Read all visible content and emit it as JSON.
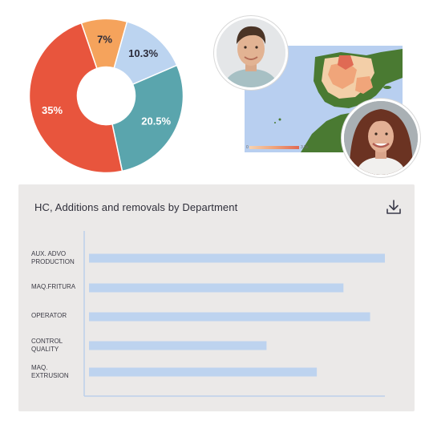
{
  "donut": {
    "chart_data": {
      "type": "pie",
      "slices": [
        {
          "label": "7%",
          "value": 7,
          "color": "#f5a35c"
        },
        {
          "label": "10.3%",
          "value": 10.3,
          "color": "#bcd4f0"
        },
        {
          "label": "20.5%",
          "value": 20.5,
          "color": "#5aa5ad"
        },
        {
          "label": "35%",
          "value": 35,
          "color": "#e8553d"
        }
      ]
    }
  },
  "map": {
    "legend_min": "0",
    "legend_max": "3.5k",
    "colors": {
      "sea": "#b8cff0",
      "land": "#4a7a32",
      "low": "#f3cfa8",
      "mid": "#f0a57a",
      "high": "#e06a54"
    }
  },
  "card": {
    "title": "HC, Additions and removals by Department",
    "download_icon": "download-icon",
    "chart_data": {
      "type": "bar",
      "orientation": "horizontal",
      "categories": [
        [
          "AUX. ADVO",
          "PRODUCTION"
        ],
        [
          "MAQ.FRITURA"
        ],
        [
          "OPERATOR"
        ],
        [
          "CONTROL",
          "QUALITY"
        ],
        [
          "MAQ.",
          "EXTRUSION"
        ]
      ],
      "values": [
        100,
        86,
        95,
        60,
        77
      ],
      "xlim": [
        0,
        100
      ],
      "bar_color": "#bdd3ef",
      "axis_color": "#bcd0ea"
    }
  }
}
